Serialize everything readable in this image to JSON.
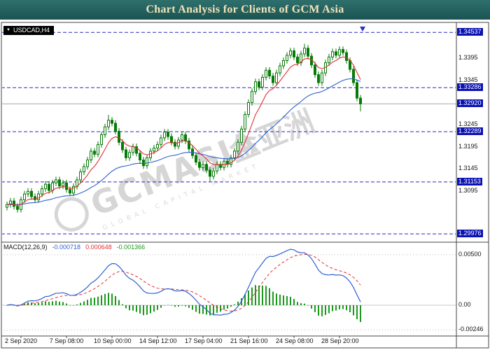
{
  "title_bar": {
    "title": "Chart Analysis for Clients of GCM Asia"
  },
  "chart": {
    "symbol_label": "USDCAD,H4",
    "dropdown_arrow": "▼",
    "watermark": {
      "brand": "GCMASIA",
      "cjk": "金亚洲",
      "sub": "GLOBAL CAPITAL MARKET"
    },
    "colors": {
      "bull_fill": "#ffffff",
      "bear_fill": "#067a06",
      "candle_stroke": "#067a06",
      "ma_fast": "#e03030",
      "ma_slow": "#3060d0",
      "level": "#2a2ac0",
      "level_box_bg": "#0b12b2",
      "bid_line": "#a8a8a8",
      "macd_line": "#3060d0",
      "macd_signal": "#e03030",
      "macd_hist": "#1d9a1d",
      "watermark": "#d6d6d6"
    }
  },
  "chart_data": {
    "type": "candlestick",
    "symbol": "USDCAD",
    "timeframe": "H4",
    "price_axis": {
      "min": 1.2982,
      "max": 1.347,
      "plain_ticks": [
        {
          "price": 1.3395,
          "label": "1.3395"
        },
        {
          "price": 1.3345,
          "label": "1.3345"
        },
        {
          "price": 1.3245,
          "label": "1.3245"
        },
        {
          "price": 1.3195,
          "label": "1.3195"
        },
        {
          "price": 1.3145,
          "label": "1.3145"
        },
        {
          "price": 1.3095,
          "label": "1.3095"
        }
      ],
      "level_labels": [
        {
          "price": 1.34537,
          "label": "1.34537"
        },
        {
          "price": 1.33286,
          "label": "1.33286"
        },
        {
          "price": 1.32289,
          "label": "1.32289"
        },
        {
          "price": 1.31153,
          "label": "1.31153"
        },
        {
          "price": 1.29976,
          "label": "1.29976"
        }
      ],
      "bid": {
        "price": 1.3292,
        "label": "1.32920"
      }
    },
    "time_axis": {
      "ticks": [
        {
          "index": 4,
          "label": "2 Sep 2020"
        },
        {
          "index": 17,
          "label": "7 Sep 08:00"
        },
        {
          "index": 30,
          "label": "10 Sep 00:00"
        },
        {
          "index": 43,
          "label": "14 Sep 12:00"
        },
        {
          "index": 56,
          "label": "17 Sep 04:00"
        },
        {
          "index": 69,
          "label": "21 Sep 16:00"
        },
        {
          "index": 82,
          "label": "24 Sep 08:00"
        },
        {
          "index": 95,
          "label": "28 Sep 20:00"
        }
      ]
    },
    "overlays": [
      {
        "name": "ma-fast",
        "type": "ema",
        "period": 8
      },
      {
        "name": "ma-slow",
        "type": "ema",
        "period": 34
      }
    ],
    "indicator": {
      "name": "MACD",
      "fast": 12,
      "slow": 26,
      "signal": 9,
      "label": "MACD(12,26,9)",
      "display_values": [
        "-0.000718",
        "0.000648",
        "-0.001366"
      ],
      "scale_ticks": [
        {
          "value": 0.005,
          "label": "0.00500"
        },
        {
          "value": 0,
          "label": "0.00"
        },
        {
          "value": -0.00246,
          "label": "-0.00246"
        }
      ]
    },
    "candles": [
      [
        1.3058,
        1.3071,
        1.3051,
        1.3064
      ],
      [
        1.3064,
        1.3079,
        1.3057,
        1.3072
      ],
      [
        1.3072,
        1.3079,
        1.3053,
        1.306
      ],
      [
        1.306,
        1.3067,
        1.3046,
        1.3053
      ],
      [
        1.3053,
        1.3082,
        1.3046,
        1.3075
      ],
      [
        1.3075,
        1.3095,
        1.3068,
        1.3088
      ],
      [
        1.3088,
        1.3101,
        1.3081,
        1.3094
      ],
      [
        1.3094,
        1.3101,
        1.3075,
        1.3082
      ],
      [
        1.3082,
        1.3089,
        1.3068,
        1.3075
      ],
      [
        1.3075,
        1.3095,
        1.3068,
        1.3088
      ],
      [
        1.3088,
        1.3107,
        1.3081,
        1.31
      ],
      [
        1.31,
        1.3117,
        1.3093,
        1.311
      ],
      [
        1.311,
        1.3117,
        1.3089,
        1.3096
      ],
      [
        1.3096,
        1.312,
        1.3089,
        1.3113
      ],
      [
        1.3113,
        1.3127,
        1.3106,
        1.312
      ],
      [
        1.312,
        1.3127,
        1.3099,
        1.3106
      ],
      [
        1.3106,
        1.312,
        1.3099,
        1.3113
      ],
      [
        1.3113,
        1.312,
        1.3091,
        1.3098
      ],
      [
        1.3098,
        1.3105,
        1.3083,
        1.309
      ],
      [
        1.309,
        1.3112,
        1.3083,
        1.3105
      ],
      [
        1.3105,
        1.3127,
        1.3098,
        1.312
      ],
      [
        1.312,
        1.3145,
        1.3113,
        1.3138
      ],
      [
        1.3138,
        1.3157,
        1.3131,
        1.315
      ],
      [
        1.315,
        1.3172,
        1.3143,
        1.3165
      ],
      [
        1.3165,
        1.3192,
        1.3158,
        1.3185
      ],
      [
        1.3185,
        1.3192,
        1.3171,
        1.3178
      ],
      [
        1.3178,
        1.3207,
        1.3171,
        1.32
      ],
      [
        1.32,
        1.3229,
        1.3193,
        1.3222
      ],
      [
        1.3222,
        1.3247,
        1.3215,
        1.324
      ],
      [
        1.324,
        1.3267,
        1.3233,
        1.3255
      ],
      [
        1.3255,
        1.3262,
        1.3241,
        1.3248
      ],
      [
        1.3248,
        1.3255,
        1.3223,
        1.323
      ],
      [
        1.323,
        1.3237,
        1.3198,
        1.3205
      ],
      [
        1.3205,
        1.3212,
        1.3181,
        1.3188
      ],
      [
        1.3188,
        1.3195,
        1.3163,
        1.317
      ],
      [
        1.317,
        1.3189,
        1.3163,
        1.3182
      ],
      [
        1.3182,
        1.3202,
        1.3175,
        1.3195
      ],
      [
        1.3195,
        1.3202,
        1.3173,
        1.318
      ],
      [
        1.318,
        1.3187,
        1.3158,
        1.3165
      ],
      [
        1.3165,
        1.3172,
        1.3145,
        1.3152
      ],
      [
        1.3152,
        1.3177,
        1.3145,
        1.317
      ],
      [
        1.317,
        1.3192,
        1.3163,
        1.3185
      ],
      [
        1.3185,
        1.3199,
        1.3178,
        1.3192
      ],
      [
        1.3192,
        1.3207,
        1.3185,
        1.32
      ],
      [
        1.32,
        1.3222,
        1.3193,
        1.3215
      ],
      [
        1.3215,
        1.3235,
        1.3208,
        1.3228
      ],
      [
        1.3228,
        1.3235,
        1.3211,
        1.3218
      ],
      [
        1.3218,
        1.3225,
        1.3198,
        1.3205
      ],
      [
        1.3205,
        1.3212,
        1.3189,
        1.3196
      ],
      [
        1.3196,
        1.3217,
        1.3189,
        1.321
      ],
      [
        1.321,
        1.3229,
        1.3203,
        1.3222
      ],
      [
        1.3222,
        1.3229,
        1.3201,
        1.3208
      ],
      [
        1.3208,
        1.3215,
        1.3183,
        1.319
      ],
      [
        1.319,
        1.3197,
        1.3168,
        1.3175
      ],
      [
        1.3175,
        1.3182,
        1.3153,
        1.316
      ],
      [
        1.316,
        1.3167,
        1.3141,
        1.3148
      ],
      [
        1.3148,
        1.3162,
        1.3141,
        1.3155
      ],
      [
        1.3155,
        1.3162,
        1.3135,
        1.3142
      ],
      [
        1.3142,
        1.3149,
        1.3116,
        1.3128
      ],
      [
        1.3128,
        1.3147,
        1.3121,
        1.314
      ],
      [
        1.314,
        1.3162,
        1.3133,
        1.3155
      ],
      [
        1.3155,
        1.3162,
        1.3141,
        1.3148
      ],
      [
        1.3148,
        1.3169,
        1.3141,
        1.3162
      ],
      [
        1.3162,
        1.3169,
        1.3148,
        1.3155
      ],
      [
        1.3155,
        1.3177,
        1.3148,
        1.317
      ],
      [
        1.317,
        1.3192,
        1.3163,
        1.3185
      ],
      [
        1.3185,
        1.3212,
        1.3178,
        1.3205
      ],
      [
        1.3205,
        1.3242,
        1.3198,
        1.3235
      ],
      [
        1.3235,
        1.3275,
        1.3228,
        1.3268
      ],
      [
        1.3268,
        1.3302,
        1.3261,
        1.3295
      ],
      [
        1.3295,
        1.3327,
        1.3288,
        1.332
      ],
      [
        1.332,
        1.3349,
        1.3313,
        1.3342
      ],
      [
        1.3342,
        1.3349,
        1.3323,
        1.333
      ],
      [
        1.333,
        1.3359,
        1.3323,
        1.3352
      ],
      [
        1.3352,
        1.3375,
        1.3345,
        1.3368
      ],
      [
        1.3368,
        1.3375,
        1.3348,
        1.3355
      ],
      [
        1.3355,
        1.3362,
        1.3333,
        1.334
      ],
      [
        1.334,
        1.3369,
        1.3333,
        1.3362
      ],
      [
        1.3362,
        1.3385,
        1.3355,
        1.3378
      ],
      [
        1.3378,
        1.3397,
        1.3371,
        1.339
      ],
      [
        1.339,
        1.3409,
        1.3383,
        1.3402
      ],
      [
        1.3402,
        1.3419,
        1.3395,
        1.3412
      ],
      [
        1.3412,
        1.3419,
        1.3391,
        1.3398
      ],
      [
        1.3398,
        1.3405,
        1.3378,
        1.3385
      ],
      [
        1.3385,
        1.3412,
        1.3378,
        1.3405
      ],
      [
        1.3405,
        1.3428,
        1.3398,
        1.3418
      ],
      [
        1.3418,
        1.3425,
        1.3393,
        1.34
      ],
      [
        1.34,
        1.3407,
        1.3373,
        1.338
      ],
      [
        1.338,
        1.3387,
        1.3351,
        1.3358
      ],
      [
        1.3358,
        1.3365,
        1.3333,
        1.334
      ],
      [
        1.334,
        1.3369,
        1.3333,
        1.3362
      ],
      [
        1.3362,
        1.3392,
        1.3355,
        1.3385
      ],
      [
        1.3385,
        1.3405,
        1.3378,
        1.3398
      ],
      [
        1.3398,
        1.3417,
        1.3391,
        1.341
      ],
      [
        1.341,
        1.3417,
        1.3395,
        1.3402
      ],
      [
        1.3402,
        1.3422,
        1.3395,
        1.3415
      ],
      [
        1.3415,
        1.3422,
        1.3401,
        1.3408
      ],
      [
        1.3408,
        1.3415,
        1.3383,
        1.339
      ],
      [
        1.339,
        1.3397,
        1.3363,
        1.337
      ],
      [
        1.337,
        1.3377,
        1.3333,
        1.334
      ],
      [
        1.334,
        1.3347,
        1.3298,
        1.3305
      ],
      [
        1.3305,
        1.3312,
        1.3275,
        1.3292
      ]
    ]
  }
}
